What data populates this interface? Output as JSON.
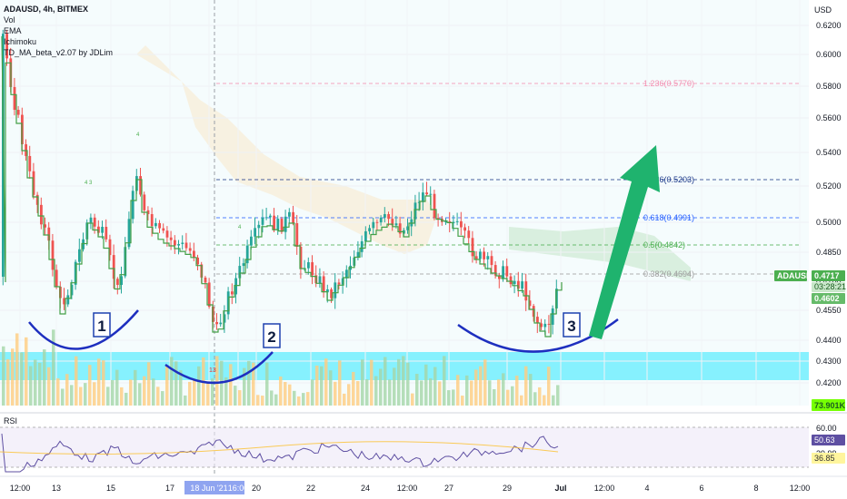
{
  "legend": {
    "symbol": "ADAUSD, 4h, BITMEX",
    "indicators": [
      "Vol",
      "EMA",
      "Ichimoku",
      "TD_MA_beta_v2.07 by JDLim"
    ]
  },
  "chart_data": {
    "type": "candlestick",
    "currency_label": "USD",
    "price_ticks": [
      "0.6200",
      "0.6000",
      "0.5800",
      "0.5600",
      "0.5400",
      "0.5200",
      "0.5000",
      "0.4850",
      "0.4700",
      "0.4550",
      "0.4400",
      "0.4300",
      "0.4200"
    ],
    "time_ticks": [
      "12:00",
      "13",
      "15",
      "17",
      "18 Jun '21",
      "16:00",
      "20",
      "22",
      "24",
      "12:00",
      "27",
      "29",
      "Jul",
      "12:00",
      "4",
      "6",
      "8",
      "12:00"
    ],
    "fib_levels": [
      {
        "label": "1.236(0.5770)",
        "color": "#f48fb1"
      },
      {
        "label": "0.786(0.5203)",
        "color": "#1e3a8a"
      },
      {
        "label": "0.618(0.4991)",
        "color": "#2962ff"
      },
      {
        "label": "0.5(0.4842)",
        "color": "#4caf50"
      },
      {
        "label": "0.382(0.4694)",
        "color": "#9e9e9e"
      }
    ],
    "pattern_labels": [
      "1",
      "2",
      "3"
    ],
    "last_price": {
      "symbol": "ADAUSD",
      "price": "0.4717",
      "countdown": "03:28:21",
      "ema_value": "0.4602"
    },
    "volume_value": "73.901K",
    "rsi": {
      "label": "RSI",
      "upper": "60.00",
      "value": "50.63",
      "mid": "39.99",
      "lower": "36.85"
    },
    "td_labels": [
      "4",
      "3",
      "4",
      "4",
      "13"
    ],
    "colors": {
      "up": "#26a69a",
      "down": "#ef5350",
      "ema": "#43a047",
      "arc": "#1e2fbf",
      "arrow": "#1fb36e",
      "cyan_zone": "#00e5ff",
      "rsi_line": "#5e4fa2"
    }
  }
}
